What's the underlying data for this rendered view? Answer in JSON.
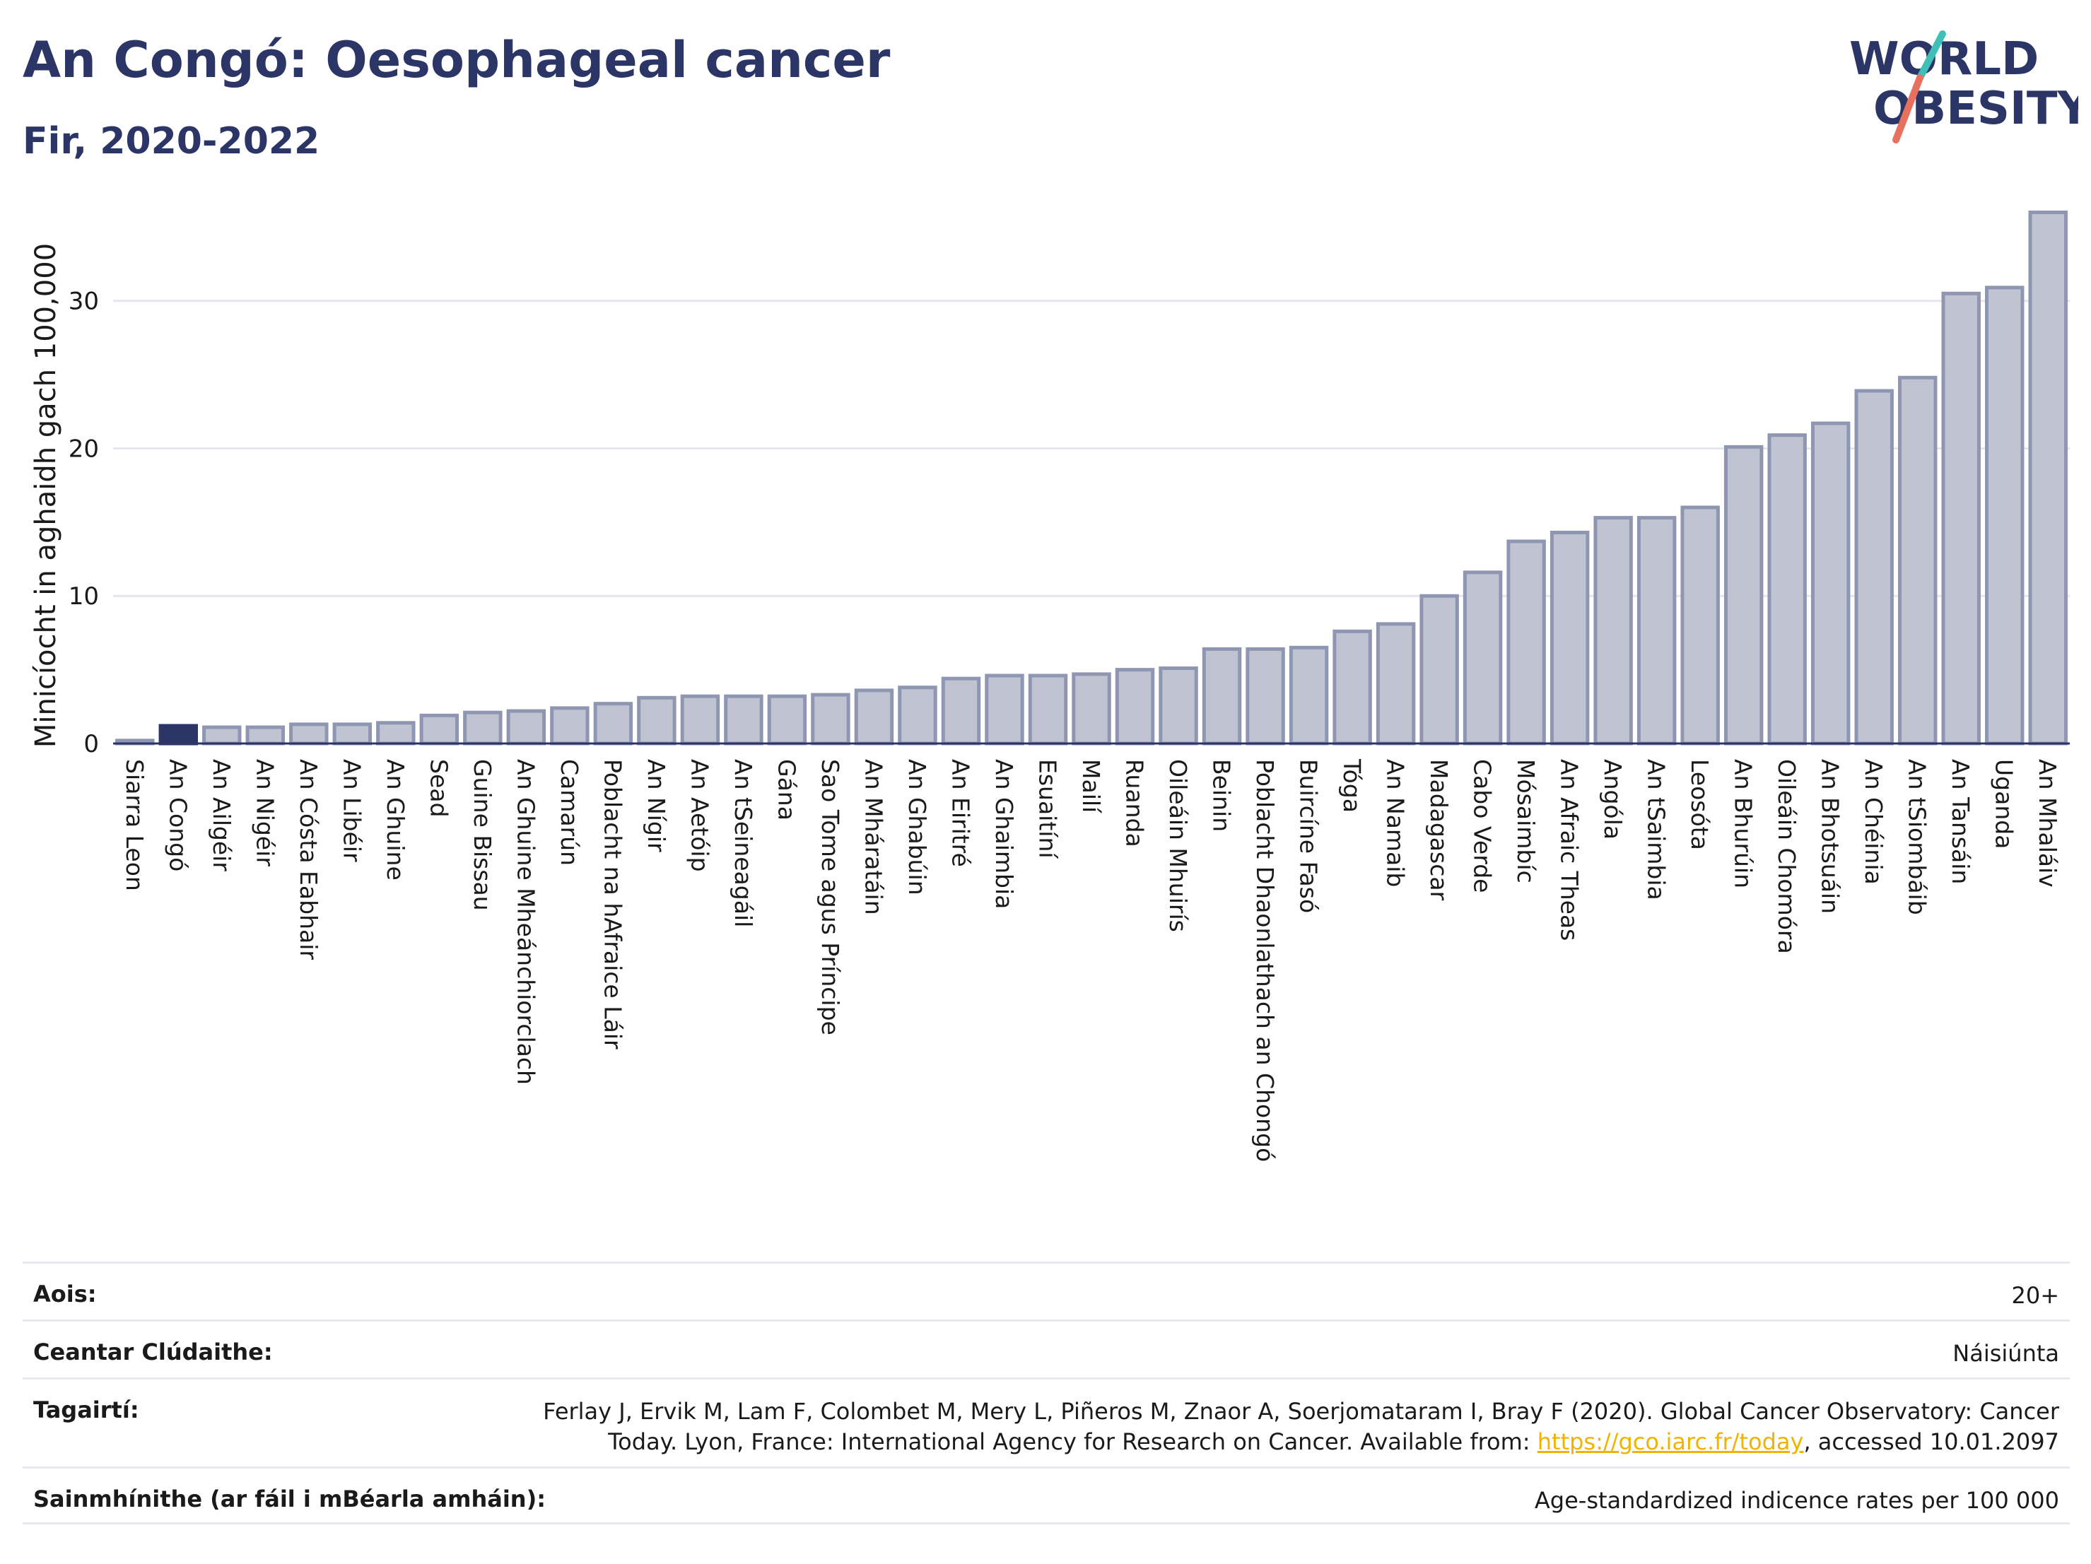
{
  "header": {
    "title": "An Congó: Oesophageal cancer",
    "subtitle": "Fir, 2020-2022",
    "logo_line1": "WORLD",
    "logo_line2": "OBESITY"
  },
  "colors": {
    "bar": "#bfc3d2",
    "bar_stroke": "#8f96b2",
    "highlight": "#2b3566",
    "title": "#2b3566",
    "logo_teal": "#3ebfb8",
    "logo_coral": "#e8705f"
  },
  "chart_data": {
    "type": "bar",
    "ylabel": "Minicíocht in aghaidh gach 100,000",
    "ylim": [
      0,
      36.5
    ],
    "yticks": [
      0,
      10,
      20,
      30
    ],
    "grid": true,
    "highlight_category": "An Congó",
    "categories": [
      "Siarra Leon",
      "An Congó",
      "An Ailgéir",
      "An Nigéir",
      "An Cósta Eabhair",
      "An Libéir",
      "An Ghuine",
      "Sead",
      "Guine Bissau",
      "An Ghuine Mheánchiorclach",
      "Camarún",
      "Poblacht na hAfraice Láir",
      "An Nígir",
      "An Aetóip",
      "An tSeineagáil",
      "Gána",
      "Sao Tome agus Príncipe",
      "An Mháratáin",
      "An Ghabúin",
      "An Eiritré",
      "An Ghaimbia",
      "Esuaitíní",
      "Mailí",
      "Ruanda",
      "Oileáin Mhuirís",
      "Beinin",
      "Poblacht Dhaonlathach an Chongó",
      "Buircíne Fasó",
      "Tóga",
      "An Namaib",
      "Madagascar",
      "Cabo Verde",
      "Mósaimbíc",
      "An Afraic Theas",
      "Angóla",
      "An tSaimbia",
      "Leosóta",
      "An Bhurúin",
      "Oileáin Chomóra",
      "An Bhotsuáin",
      "An Chéinia",
      "An tSiombáib",
      "An Tansáin",
      "Uganda",
      "An Mhaláiv"
    ],
    "values": [
      0.2,
      1.2,
      1.1,
      1.1,
      1.3,
      1.3,
      1.4,
      1.9,
      2.1,
      2.2,
      2.4,
      2.7,
      3.1,
      3.2,
      3.2,
      3.2,
      3.3,
      3.6,
      3.8,
      4.4,
      4.6,
      4.6,
      4.7,
      5.0,
      5.1,
      6.4,
      6.4,
      6.5,
      7.6,
      8.1,
      10.0,
      11.6,
      13.7,
      14.3,
      15.3,
      15.3,
      16.0,
      20.1,
      20.9,
      21.7,
      23.9,
      24.8,
      30.5,
      30.9,
      36.0
    ]
  },
  "info": {
    "age_label": "Aois:",
    "age_value": "20+",
    "coverage_label": "Ceantar Clúdaithe:",
    "coverage_value": "Náisiúnta",
    "refs_label": "Tagairtí:",
    "refs_line1": "Ferlay J, Ervik M, Lam F, Colombet M, Mery L, Piñeros M, Znaor A, Soerjomataram I, Bray F (2020). Global Cancer Observatory: Cancer",
    "refs_line2_pre": "Today. Lyon, France: International Agency for Research on Cancer. Available from: ",
    "refs_link": "https://gco.iarc.fr/today",
    "refs_line2_post": ", accessed 10.01.2097",
    "defs_label": "Sainmhínithe (ar fáil i mBéarla amháin):",
    "defs_value": "Age-standardized indicence rates per 100 000"
  }
}
